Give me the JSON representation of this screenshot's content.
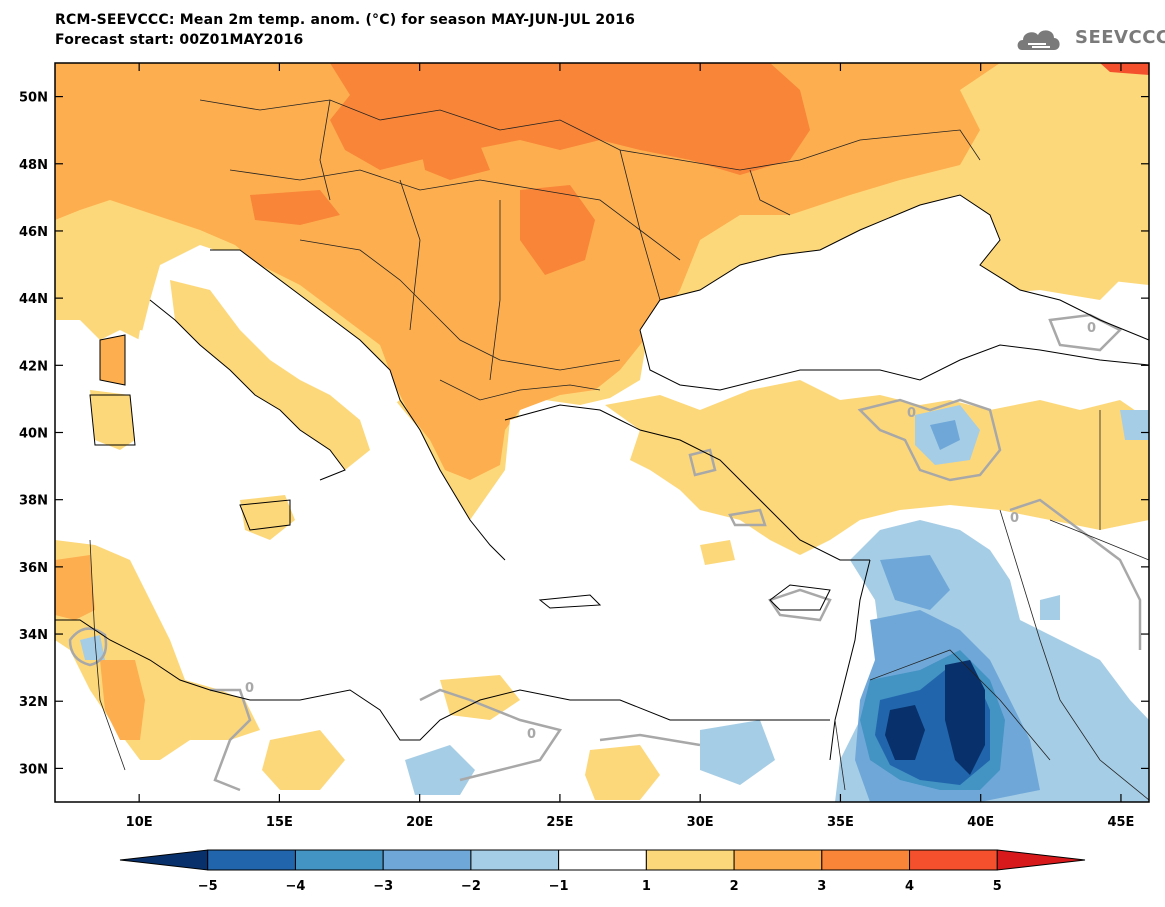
{
  "header": {
    "title": "RCM-SEEVCCC: Mean 2m temp. anom. (°C) for season MAY-JUN-JUL 2016",
    "subtitle": "Forecast start: 00Z01MAY2016",
    "logo_text": "SEEVCCC"
  },
  "map": {
    "lon_range": [
      7,
      46
    ],
    "lat_range": [
      29,
      51
    ],
    "lat_labels": [
      "30N",
      "32N",
      "34N",
      "36N",
      "38N",
      "40N",
      "42N",
      "44N",
      "46N",
      "48N",
      "50N"
    ],
    "lon_labels": [
      "10E",
      "15E",
      "20E",
      "25E",
      "30E",
      "35E",
      "40E",
      "45E"
    ],
    "contour_label": "0"
  },
  "colorbar": {
    "ticks": [
      "−5",
      "−4",
      "−3",
      "−2",
      "−1",
      "1",
      "2",
      "3",
      "4",
      "5"
    ],
    "colors": [
      "#08306b",
      "#2166ac",
      "#4393c3",
      "#6fa8d8",
      "#a6cde6",
      "#ffffff",
      "#fdd87a",
      "#fdae4f",
      "#f98538",
      "#f4502d",
      "#d7191c"
    ]
  }
}
